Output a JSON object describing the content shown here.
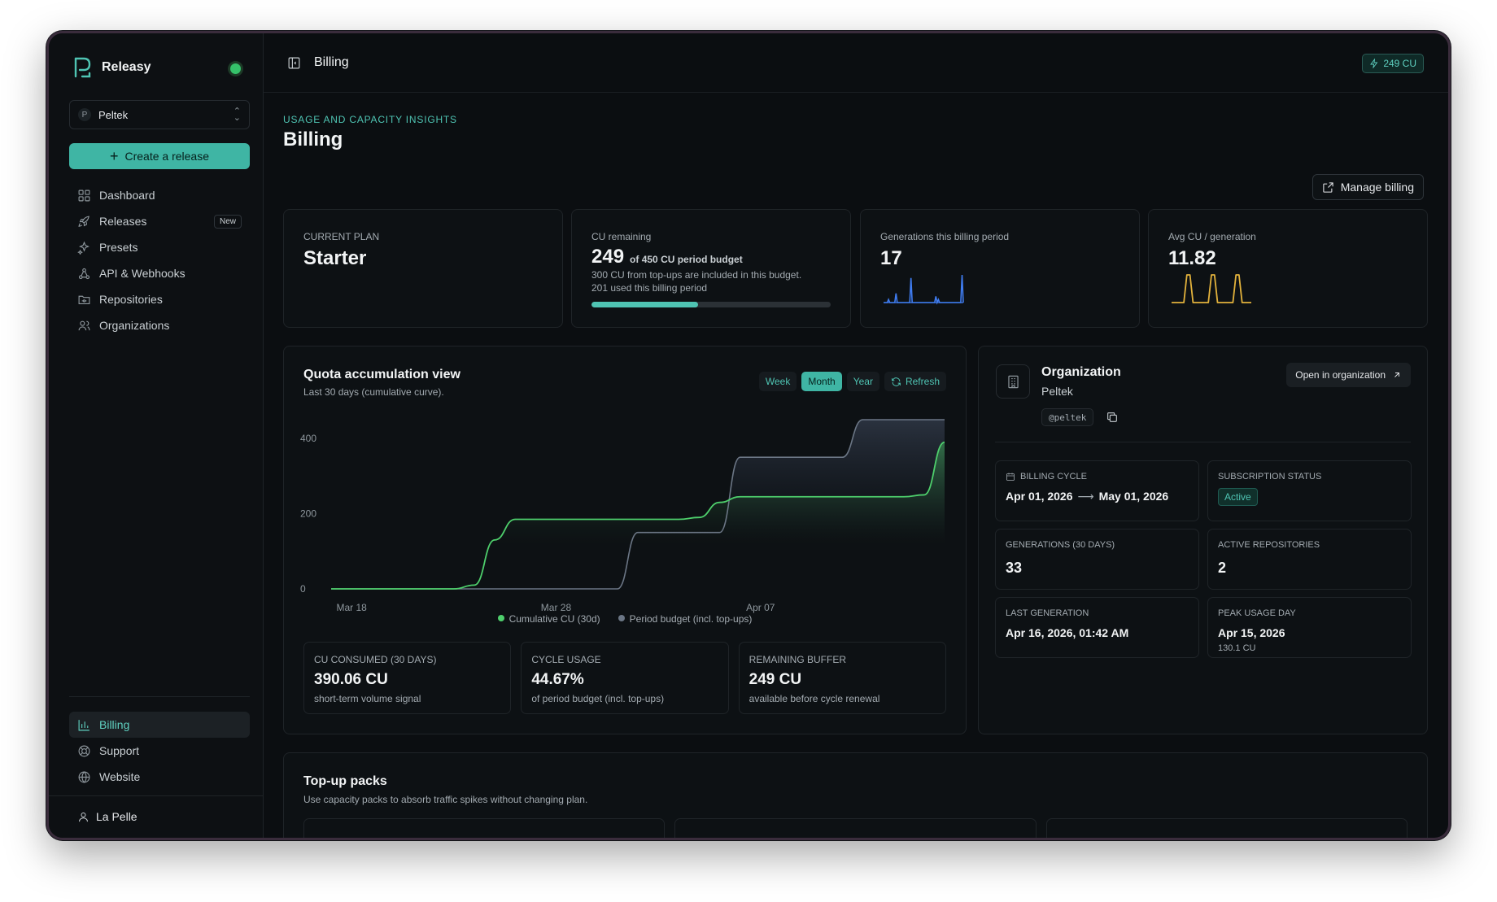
{
  "app": {
    "name": "Releasy"
  },
  "org_selector": {
    "initial": "P",
    "name": "Peltek"
  },
  "sidebar": {
    "create_label": "Create a release",
    "items": [
      {
        "label": "Dashboard"
      },
      {
        "label": "Releases",
        "badge": "New"
      },
      {
        "label": "Presets"
      },
      {
        "label": "API & Webhooks"
      },
      {
        "label": "Repositories"
      },
      {
        "label": "Organizations"
      }
    ],
    "bottom_items": [
      {
        "label": "Billing"
      },
      {
        "label": "Support"
      },
      {
        "label": "Website"
      }
    ],
    "user": "La Pelle"
  },
  "topbar": {
    "title": "Billing",
    "cu_balance": "249 CU"
  },
  "page": {
    "eyebrow": "USAGE AND CAPACITY INSIGHTS",
    "title": "Billing",
    "manage_label": "Manage billing"
  },
  "stats": {
    "plan": {
      "label": "CURRENT PLAN",
      "value": "Starter"
    },
    "remaining": {
      "label": "CU remaining",
      "value": "249",
      "of": "of 450 CU period budget",
      "note1": "300 CU from top-ups are included in this budget.",
      "note2": "201 used this billing period",
      "progress": 0.447
    },
    "generations": {
      "label": "Generations this billing period",
      "value": "17"
    },
    "avg": {
      "label": "Avg CU / generation",
      "value": "11.82"
    }
  },
  "quota": {
    "title": "Quota accumulation view",
    "subtitle": "Last 30 days (cumulative curve).",
    "ranges": [
      "Week",
      "Month",
      "Year"
    ],
    "active_range": "Month",
    "refresh_label": "Refresh",
    "cards": [
      {
        "label": "CU CONSUMED (30 DAYS)",
        "value": "390.06 CU",
        "note": "short-term volume signal"
      },
      {
        "label": "CYCLE USAGE",
        "value": "44.67%",
        "note": "of period budget (incl. top-ups)"
      },
      {
        "label": "REMAINING BUFFER",
        "value": "249 CU",
        "note": "available before cycle renewal"
      }
    ]
  },
  "chart_data": {
    "type": "area",
    "x": [
      "Mar 17",
      "Mar 18",
      "Mar 19",
      "Mar 20",
      "Mar 21",
      "Mar 22",
      "Mar 23",
      "Mar 24",
      "Mar 25",
      "Mar 26",
      "Mar 27",
      "Mar 28",
      "Mar 29",
      "Mar 30",
      "Mar 31",
      "Apr 01",
      "Apr 02",
      "Apr 03",
      "Apr 04",
      "Apr 05",
      "Apr 06",
      "Apr 07",
      "Apr 08",
      "Apr 09",
      "Apr 10",
      "Apr 11",
      "Apr 12",
      "Apr 13",
      "Apr 14",
      "Apr 15",
      "Apr 16"
    ],
    "xticks": [
      "Mar 18",
      "Mar 28",
      "Apr 07"
    ],
    "yticks": [
      0,
      200,
      400
    ],
    "ylim": [
      0,
      450
    ],
    "series": [
      {
        "name": "Cumulative CU (30d)",
        "color": "#4ecf6c",
        "values": [
          0,
          0,
          0,
          0,
          0,
          0,
          0,
          10,
          130,
          185,
          185,
          185,
          185,
          185,
          185,
          185,
          185,
          185,
          190,
          230,
          245,
          245,
          245,
          245,
          245,
          245,
          245,
          245,
          245,
          250,
          390
        ]
      },
      {
        "name": "Period budget (incl. top-ups)",
        "color": "#6b7685",
        "values": [
          0,
          0,
          0,
          0,
          0,
          0,
          0,
          0,
          0,
          0,
          0,
          0,
          0,
          0,
          0,
          150,
          150,
          150,
          150,
          150,
          350,
          350,
          350,
          350,
          350,
          350,
          450,
          450,
          450,
          450,
          450
        ]
      }
    ],
    "xlabel": "",
    "ylabel": "",
    "grid": false,
    "legend": "bottom"
  },
  "sparklines": {
    "generations": {
      "color": "#3f7cf0",
      "values": [
        0,
        0,
        0,
        0,
        1,
        0,
        0,
        0,
        0,
        0,
        3,
        0,
        0,
        0,
        0,
        0,
        0,
        0,
        0,
        0,
        0,
        0,
        8,
        0,
        0,
        0,
        0,
        0,
        0,
        0,
        0,
        0,
        0,
        0,
        0,
        0,
        0,
        0,
        0,
        0,
        0,
        0,
        2,
        0,
        1,
        0,
        0,
        0,
        0,
        0,
        0,
        0,
        0,
        0,
        0,
        0,
        0,
        0,
        0,
        0,
        0,
        0,
        0,
        9,
        0
      ]
    },
    "avg": {
      "color": "#e2b23c",
      "values": [
        0,
        0,
        0,
        0,
        0,
        10,
        10,
        0,
        0,
        0,
        0,
        0,
        0,
        10,
        10,
        0,
        0,
        0,
        0,
        0,
        0,
        10,
        10,
        0,
        0,
        0,
        0
      ]
    }
  },
  "organization": {
    "heading": "Organization",
    "name": "Peltek",
    "slug": "@peltek",
    "open_label": "Open in organization",
    "billing_cycle": {
      "label": "BILLING CYCLE",
      "start": "Apr 01, 2026",
      "end": "May 01, 2026"
    },
    "subscription": {
      "label": "SUBSCRIPTION STATUS",
      "value": "Active"
    },
    "generations_30": {
      "label": "GENERATIONS (30 DAYS)",
      "value": "33"
    },
    "active_repos": {
      "label": "ACTIVE REPOSITORIES",
      "value": "2"
    },
    "last_generation": {
      "label": "LAST GENERATION",
      "value": "Apr 16, 2026, 01:42 AM"
    },
    "peak_day": {
      "label": "PEAK USAGE DAY",
      "value": "Apr 15, 2026",
      "sub": "130.1 CU"
    }
  },
  "topups": {
    "title": "Top-up packs",
    "subtitle": "Use capacity packs to absorb traffic spikes without changing plan."
  },
  "colors": {
    "accent": "#3fb5a4",
    "background": "#0b0e11"
  }
}
